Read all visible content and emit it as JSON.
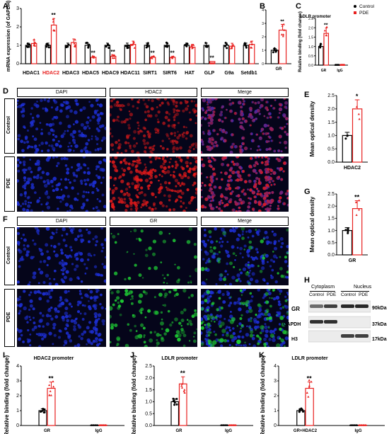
{
  "panels": {
    "A": {
      "label": "A",
      "chart_data": {
        "type": "bar",
        "ylabel": "mRNA expression (of GAPDH)",
        "ylim": [
          0,
          3
        ],
        "yticks": [
          "0",
          "1",
          "2",
          "3"
        ],
        "categories": [
          "HDAC1",
          "HDAC2",
          "HDAC3",
          "HDAC5",
          "HDAC9",
          "HDAC11",
          "SIRT1",
          "SIRT6",
          "HAT",
          "GLP",
          "G9a",
          "Setdb1"
        ],
        "highlight_category": "HDAC2",
        "series": [
          {
            "name": "Control",
            "values": [
              1.0,
              1.0,
              1.0,
              1.0,
              1.0,
              1.0,
              1.0,
              1.0,
              1.0,
              1.0,
              1.0,
              1.0
            ]
          },
          {
            "name": "PDE",
            "values": [
              1.1,
              2.1,
              1.15,
              0.35,
              0.4,
              1.05,
              0.35,
              0.35,
              0.9,
              0.12,
              0.95,
              1.05
            ]
          }
        ],
        "significance": [
          "",
          "**",
          "",
          "**",
          "**",
          "",
          "**",
          "**",
          "",
          "**",
          "",
          ""
        ]
      }
    },
    "B": {
      "label": "B",
      "chart_data": {
        "type": "bar",
        "categories": [
          "GR"
        ],
        "ylim": [
          0,
          4
        ],
        "yticks": [
          "0",
          "1",
          "2",
          "3",
          "4"
        ],
        "series": [
          {
            "name": "Control",
            "values": [
              1.0
            ]
          },
          {
            "name": "PDE",
            "values": [
              2.5
            ]
          }
        ],
        "significance": [
          "**"
        ]
      }
    },
    "C": {
      "label": "C",
      "chart_data": {
        "type": "bar",
        "title": "LDLR promoter",
        "ylabel": "Relative binding (fold change)",
        "ylim": [
          0,
          2.5
        ],
        "yticks": [
          "0.0",
          "0.5",
          "1.0",
          "1.5",
          "2.0",
          "2.5"
        ],
        "categories": [
          "GR",
          "IgG"
        ],
        "series": [
          {
            "name": "Control",
            "values": [
              1.0,
              0.02
            ]
          },
          {
            "name": "PDE",
            "values": [
              1.7,
              0.02
            ]
          }
        ],
        "significance": [
          "**",
          ""
        ]
      },
      "legend": [
        "Control",
        "PDE"
      ]
    },
    "D": {
      "label": "D",
      "headers": [
        "DAPI",
        "HDAC2",
        "Merge"
      ],
      "rows": [
        "Control",
        "PDE"
      ]
    },
    "E": {
      "label": "E",
      "chart_data": {
        "type": "bar",
        "ylabel": "Mean optical density",
        "ylim": [
          0,
          2.5
        ],
        "yticks": [
          "0.0",
          "0.5",
          "1.0",
          "1.5",
          "2.0",
          "2.5"
        ],
        "categories": [
          "HDAC2"
        ],
        "series": [
          {
            "name": "Control",
            "values": [
              1.0
            ]
          },
          {
            "name": "PDE",
            "values": [
              2.0
            ]
          }
        ],
        "significance": [
          "*"
        ]
      }
    },
    "F": {
      "label": "F",
      "headers": [
        "DAPI",
        "GR",
        "Merge"
      ],
      "rows": [
        "Control",
        "PDE"
      ]
    },
    "G": {
      "label": "G",
      "chart_data": {
        "type": "bar",
        "ylabel": "Mean optical density",
        "ylim": [
          0,
          2.5
        ],
        "yticks": [
          "0.0",
          "0.5",
          "1.0",
          "1.5",
          "2.0",
          "2.5"
        ],
        "categories": [
          "GR"
        ],
        "series": [
          {
            "name": "Control",
            "values": [
              1.0
            ]
          },
          {
            "name": "PDE",
            "values": [
              1.9
            ]
          }
        ],
        "significance": [
          "**"
        ]
      }
    },
    "H": {
      "label": "H",
      "fractions": [
        "Cytoplasm",
        "Nucleus"
      ],
      "lanes": [
        "Control",
        "PDE",
        "Control",
        "PDE"
      ],
      "bands": [
        {
          "name": "GR",
          "size": "90kDa",
          "intensities": [
            0.55,
            0.85,
            1.0,
            1.0
          ]
        },
        {
          "name": "GAPDH",
          "size": "37kDa",
          "intensities": [
            0.95,
            0.95,
            0,
            0
          ]
        },
        {
          "name": "H3",
          "size": "17kDa",
          "intensities": [
            0,
            0,
            0.85,
            0.85
          ]
        }
      ]
    },
    "I": {
      "label": "I",
      "chart_data": {
        "type": "bar",
        "title": "HDAC2 promoter",
        "ylabel": "Relative binding (fold change)",
        "ylim": [
          0,
          4
        ],
        "yticks": [
          "0",
          "1",
          "2",
          "3",
          "4"
        ],
        "categories": [
          "GR",
          "IgG"
        ],
        "series": [
          {
            "name": "Control",
            "values": [
              1.0,
              0.03
            ]
          },
          {
            "name": "PDE",
            "values": [
              2.5,
              0.03
            ]
          }
        ],
        "significance": [
          "**",
          ""
        ]
      }
    },
    "J": {
      "label": "J",
      "chart_data": {
        "type": "bar",
        "title": "LDLR promoter",
        "ylabel": "Relative binding (fold change)",
        "ylim": [
          0,
          2.5
        ],
        "yticks": [
          "0.0",
          "0.5",
          "1.0",
          "1.5",
          "2.0",
          "2.5"
        ],
        "categories": [
          "GR",
          "IgG"
        ],
        "series": [
          {
            "name": "Control",
            "values": [
              1.0,
              0.02
            ]
          },
          {
            "name": "PDE",
            "values": [
              1.75,
              0.02
            ]
          }
        ],
        "significance": [
          "**",
          ""
        ]
      }
    },
    "K": {
      "label": "K",
      "chart_data": {
        "type": "bar",
        "title": "LDLR promoter",
        "ylabel": "Relative binding (fold change)",
        "ylim": [
          0,
          4
        ],
        "yticks": [
          "0",
          "1",
          "2",
          "3",
          "4"
        ],
        "categories": [
          "GR+HDAC2",
          "IgG"
        ],
        "series": [
          {
            "name": "Control",
            "values": [
              1.0,
              0.03
            ]
          },
          {
            "name": "PDE",
            "values": [
              2.5,
              0.03
            ]
          }
        ],
        "significance": [
          "**",
          ""
        ]
      }
    }
  },
  "colors": {
    "control": "#000000",
    "pde": "#e8201f",
    "pde_fill": "#f7b5b5",
    "dapi": "#1d2fd4",
    "hdac2": "#e31a1a",
    "gr": "#1fd135",
    "highlight": "#e8201f"
  }
}
